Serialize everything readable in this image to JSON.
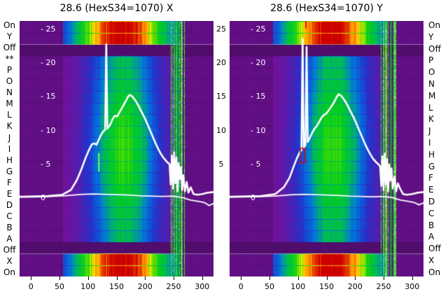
{
  "titles": {
    "left": "28.6 (HexS34=1070) X",
    "right": "28.6 (HexS34=1070) Y"
  },
  "left_labels": [
    "On",
    "Y",
    "Off",
    "**",
    "P",
    "O",
    "N",
    "M",
    "L",
    "K",
    "J",
    "I",
    "H",
    "G",
    "F",
    "E",
    "D",
    "C",
    "B",
    "A",
    "Off",
    "X",
    "On"
  ],
  "right_labels": [
    "On",
    "Y",
    "Off",
    "P",
    "O",
    "N",
    "M",
    "L",
    "K",
    "J",
    "I",
    "H",
    "G",
    "F",
    "E",
    "D",
    "C",
    "B",
    "A",
    "Off",
    "X",
    "On"
  ],
  "value_axis": {
    "inside_labels": [
      "- 25",
      "- 20",
      "- 15",
      "- 10",
      "- 5",
      "0"
    ],
    "inside_values": [
      25,
      20,
      15,
      10,
      5,
      0
    ],
    "gap_labels": [
      "25",
      "20",
      "15",
      "10",
      "5"
    ],
    "gap_values": [
      25,
      20,
      15,
      10,
      5
    ]
  },
  "x_axis": {
    "ticks": [
      0,
      50,
      100,
      150,
      200,
      250,
      300
    ]
  },
  "colors": {
    "background": "#ffffff",
    "text": "#000000",
    "curve": "#ffffff",
    "marker": "#e00000",
    "green_tick": "#7dff5a",
    "tick": "#000000"
  },
  "chart_data": {
    "type": "heatmap",
    "description": "Two wire-profile-monitor spectrogram panels (X and Y planes) with white integrated beam profile curves overlaid",
    "x_range": [
      -20,
      320
    ],
    "x_ticks": [
      0,
      50,
      100,
      150,
      200,
      250,
      300
    ],
    "value_range": [
      -11.6,
      26.2
    ],
    "value_ticks": [
      0,
      5,
      10,
      15,
      20,
      25
    ],
    "rows": [
      "On",
      "Y",
      "Off",
      "P",
      "O",
      "N",
      "M",
      "L",
      "K",
      "J",
      "I",
      "H",
      "G",
      "F",
      "E",
      "D",
      "C",
      "B",
      "A",
      "Off",
      "X",
      "On"
    ],
    "row_types": [
      "band",
      "band",
      "off",
      "wire",
      "wire",
      "wire",
      "wire",
      "wire",
      "wire",
      "wire",
      "wire",
      "wire",
      "wire",
      "wire",
      "wire",
      "wire",
      "wire",
      "wire",
      "wire",
      "off",
      "band",
      "band"
    ],
    "beam": {
      "x_range": [
        55,
        258
      ],
      "center": 162,
      "sigma_wire": 58,
      "sigma_band": 85,
      "noise_x_range": [
        245,
        272
      ]
    },
    "colormap": [
      [
        0,
        "#2b0836"
      ],
      [
        0.13,
        "#71119c"
      ],
      [
        0.28,
        "#2233cc"
      ],
      [
        0.4,
        "#0077dd"
      ],
      [
        0.5,
        "#00bb55"
      ],
      [
        0.6,
        "#00cc22"
      ],
      [
        0.7,
        "#55dd00"
      ],
      [
        0.78,
        "#ffee00"
      ],
      [
        0.88,
        "#ff7700"
      ],
      [
        1,
        "#cc0000"
      ]
    ],
    "panels": [
      {
        "name": "X",
        "title": "28.6 (HexS34=1070) X",
        "top_marker_x": 141,
        "green_tick": {
          "x": 119,
          "v1": 4.0,
          "v2": 6.6
        },
        "box": null,
        "profile": [
          [
            -20,
            0.2
          ],
          [
            30,
            0.3
          ],
          [
            55,
            0.5
          ],
          [
            70,
            1.2
          ],
          [
            80,
            2.6
          ],
          [
            88,
            4.2
          ],
          [
            95,
            5.8
          ],
          [
            102,
            7.2
          ],
          [
            107,
            8.0
          ],
          [
            111,
            8.1
          ],
          [
            115,
            7.9
          ],
          [
            119,
            8.7
          ],
          [
            123,
            9.4
          ],
          [
            127,
            9.9
          ],
          [
            130,
            10.1
          ],
          [
            132,
            22.8
          ],
          [
            134,
            10.3
          ],
          [
            139,
            10.9
          ],
          [
            143,
            11.7
          ],
          [
            147,
            12.2
          ],
          [
            151,
            12.1
          ],
          [
            155,
            12.7
          ],
          [
            159,
            13.3
          ],
          [
            163,
            13.9
          ],
          [
            167,
            14.5
          ],
          [
            170,
            15.0
          ],
          [
            173,
            15.3
          ],
          [
            177,
            15.1
          ],
          [
            181,
            14.7
          ],
          [
            185,
            14.2
          ],
          [
            189,
            13.6
          ],
          [
            193,
            12.9
          ],
          [
            198,
            12.1
          ],
          [
            203,
            11.2
          ],
          [
            208,
            10.2
          ],
          [
            213,
            9.2
          ],
          [
            218,
            8.2
          ],
          [
            223,
            7.3
          ],
          [
            228,
            6.5
          ],
          [
            233,
            5.9
          ],
          [
            238,
            5.4
          ],
          [
            243,
            5.0
          ],
          [
            245,
            2.0
          ],
          [
            247,
            6.3
          ],
          [
            249,
            1.4
          ],
          [
            251,
            6.8
          ],
          [
            253,
            2.2
          ],
          [
            255,
            6.0
          ],
          [
            257,
            1.0
          ],
          [
            259,
            5.2
          ],
          [
            261,
            2.8
          ],
          [
            263,
            4.6
          ],
          [
            265,
            1.2
          ],
          [
            267,
            3.4
          ],
          [
            270,
            1.0
          ],
          [
            273,
            2.4
          ],
          [
            276,
            0.8
          ],
          [
            280,
            1.6
          ],
          [
            285,
            0.6
          ],
          [
            292,
            0.5
          ],
          [
            300,
            0.6
          ],
          [
            310,
            0.8
          ],
          [
            320,
            0.9
          ]
        ],
        "baseline": [
          [
            -20,
            0.15
          ],
          [
            20,
            0.2
          ],
          [
            60,
            0.35
          ],
          [
            90,
            0.55
          ],
          [
            110,
            0.6
          ],
          [
            130,
            0.55
          ],
          [
            150,
            0.5
          ],
          [
            170,
            0.45
          ],
          [
            190,
            0.35
          ],
          [
            210,
            0.3
          ],
          [
            230,
            0.25
          ],
          [
            250,
            0.3
          ],
          [
            265,
            0.1
          ],
          [
            280,
            -0.3
          ],
          [
            295,
            -0.5
          ],
          [
            305,
            -0.7
          ],
          [
            312,
            -1.1
          ],
          [
            320,
            -0.8
          ]
        ]
      },
      {
        "name": "Y",
        "title": "28.6 (HexS34=1070) Y",
        "top_marker_x": 114,
        "green_tick": null,
        "box": {
          "x1": 104,
          "x2": 112,
          "v1": 5.2,
          "v2": 7.4
        },
        "profile": [
          [
            -20,
            0.2
          ],
          [
            35,
            0.3
          ],
          [
            60,
            0.6
          ],
          [
            75,
            1.6
          ],
          [
            85,
            3.0
          ],
          [
            92,
            4.6
          ],
          [
            98,
            5.9
          ],
          [
            103,
            6.8
          ],
          [
            106,
            7.1
          ],
          [
            108,
            23.6
          ],
          [
            110,
            7.4
          ],
          [
            113,
            7.9
          ],
          [
            115,
            22.4
          ],
          [
            117,
            8.3
          ],
          [
            121,
            9.0
          ],
          [
            125,
            9.7
          ],
          [
            129,
            10.3
          ],
          [
            133,
            10.7
          ],
          [
            137,
            11.3
          ],
          [
            141,
            11.9
          ],
          [
            145,
            12.3
          ],
          [
            149,
            12.5
          ],
          [
            153,
            12.9
          ],
          [
            157,
            13.4
          ],
          [
            161,
            13.9
          ],
          [
            165,
            14.5
          ],
          [
            168,
            15.0
          ],
          [
            171,
            15.4
          ],
          [
            175,
            15.2
          ],
          [
            179,
            14.8
          ],
          [
            183,
            14.3
          ],
          [
            187,
            13.7
          ],
          [
            191,
            13.0
          ],
          [
            196,
            12.2
          ],
          [
            201,
            11.3
          ],
          [
            206,
            10.3
          ],
          [
            211,
            9.3
          ],
          [
            216,
            8.3
          ],
          [
            221,
            7.4
          ],
          [
            226,
            6.6
          ],
          [
            231,
            5.9
          ],
          [
            236,
            5.4
          ],
          [
            241,
            5.0
          ],
          [
            244,
            4.7
          ],
          [
            246,
            1.8
          ],
          [
            248,
            6.2
          ],
          [
            250,
            1.2
          ],
          [
            252,
            6.6
          ],
          [
            254,
            2.0
          ],
          [
            256,
            5.8
          ],
          [
            258,
            1.0
          ],
          [
            260,
            5.0
          ],
          [
            262,
            2.6
          ],
          [
            264,
            4.4
          ],
          [
            266,
            1.4
          ],
          [
            269,
            3.2
          ],
          [
            272,
            1.0
          ],
          [
            275,
            2.2
          ],
          [
            279,
            1.4
          ],
          [
            284,
            0.6
          ],
          [
            291,
            0.5
          ],
          [
            300,
            0.6
          ],
          [
            310,
            0.8
          ],
          [
            320,
            0.9
          ]
        ],
        "baseline": [
          [
            -20,
            0.15
          ],
          [
            20,
            0.2
          ],
          [
            60,
            0.3
          ],
          [
            90,
            0.5
          ],
          [
            110,
            0.55
          ],
          [
            130,
            0.5
          ],
          [
            150,
            0.45
          ],
          [
            170,
            0.4
          ],
          [
            190,
            0.3
          ],
          [
            210,
            0.25
          ],
          [
            230,
            0.2
          ],
          [
            250,
            0.25
          ],
          [
            265,
            0.1
          ],
          [
            280,
            -0.3
          ],
          [
            295,
            -0.5
          ],
          [
            305,
            -0.7
          ],
          [
            312,
            -1.0
          ],
          [
            320,
            -0.7
          ]
        ]
      }
    ]
  }
}
